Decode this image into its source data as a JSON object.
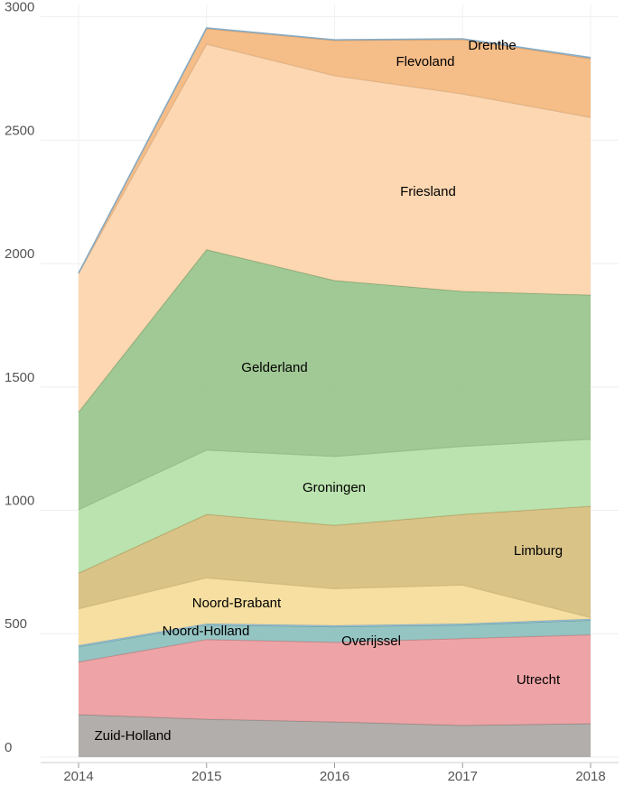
{
  "chart_data": {
    "type": "stacked_area",
    "categories": [
      "2014",
      "2015",
      "2016",
      "2017",
      "2018"
    ],
    "series": [
      {
        "name": "Zuid-Holland",
        "color": "#aaa5a2",
        "values": [
          173,
          154,
          143,
          129,
          136
        ]
      },
      {
        "name": "Utrecht",
        "color": "#ec9a9c",
        "values": [
          213,
          323,
          323,
          352,
          360
        ]
      },
      {
        "name": "Overijssel",
        "color": "#88bfbc",
        "values": [
          62,
          59,
          63,
          55,
          59
        ]
      },
      {
        "name": "Noord-Holland",
        "color": "#9ecae9",
        "values": [
          5,
          5,
          5,
          5,
          5
        ]
      },
      {
        "name": "Noord-Brabant",
        "color": "#f5dc96",
        "values": [
          149,
          186,
          149,
          157,
          6
        ]
      },
      {
        "name": "Limburg",
        "color": "#d6bd7a",
        "values": [
          144,
          257,
          257,
          286,
          451
        ]
      },
      {
        "name": "Groningen",
        "color": "#b4e0a6",
        "values": [
          257,
          261,
          279,
          276,
          272
        ]
      },
      {
        "name": "Gelderland",
        "color": "#97c38a",
        "values": [
          396,
          812,
          713,
          628,
          584
        ]
      },
      {
        "name": "Friesland",
        "color": "#fdd3a8",
        "values": [
          562,
          833,
          830,
          800,
          720
        ]
      },
      {
        "name": "Flevoland",
        "color": "#f4b67b",
        "values": [
          0,
          63,
          143,
          221,
          238
        ]
      },
      {
        "name": "Drenthe",
        "color": "#9ecae9",
        "values": [
          0,
          2,
          2,
          2,
          4
        ]
      }
    ],
    "ylim": [
      0,
      3050
    ],
    "yticks": [
      0,
      500,
      1000,
      1500,
      2000,
      2500,
      3000
    ],
    "grid": true
  }
}
